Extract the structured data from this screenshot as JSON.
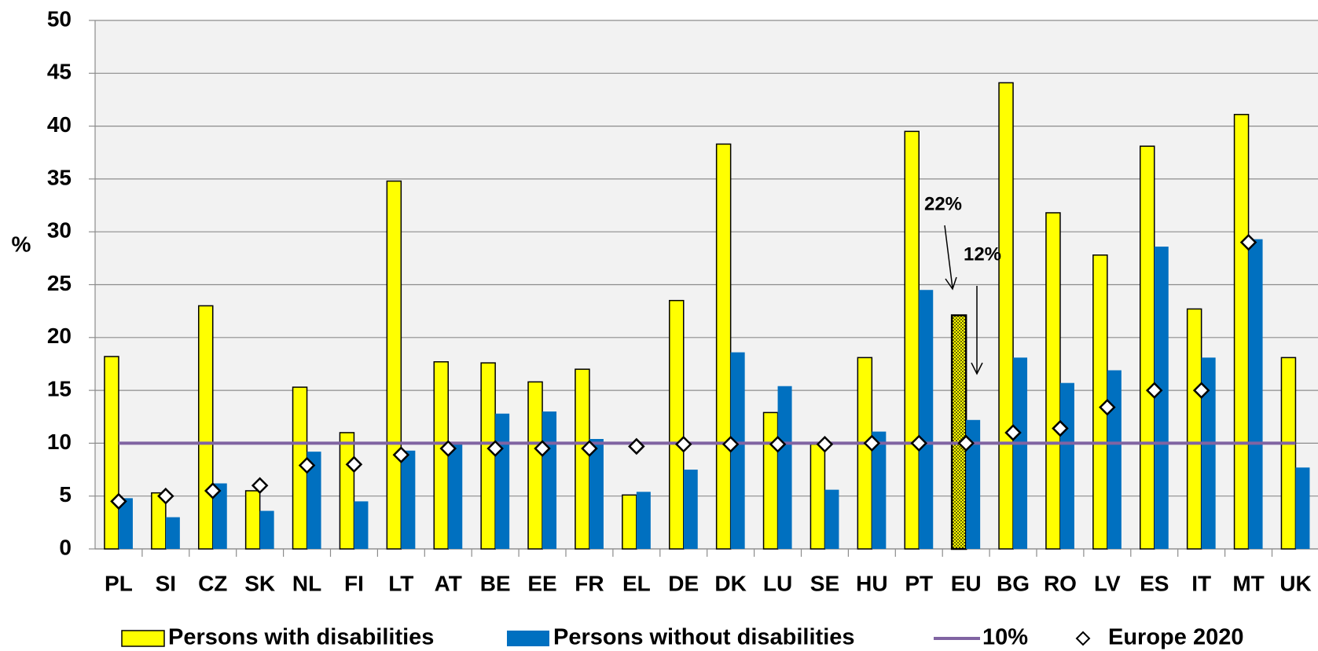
{
  "chart_data": {
    "type": "bar",
    "y_label": "%",
    "categories": [
      "PL",
      "SI",
      "CZ",
      "SK",
      "NL",
      "FI",
      "LT",
      "AT",
      "BE",
      "EE",
      "FR",
      "EL",
      "DE",
      "DK",
      "LU",
      "SE",
      "HU",
      "PT",
      "EU",
      "BG",
      "RO",
      "LV",
      "ES",
      "IT",
      "MT",
      "UK"
    ],
    "series": [
      {
        "name": "Persons with disabilities",
        "color": "#ffff00",
        "values": [
          18.2,
          5.3,
          23,
          5.5,
          15.3,
          11,
          34.8,
          17.7,
          17.6,
          15.8,
          17,
          5.1,
          23.5,
          38.3,
          12.9,
          9.9,
          18.1,
          39.5,
          22.1,
          44.1,
          31.8,
          27.8,
          38.1,
          22.7,
          41.1,
          18.1
        ]
      },
      {
        "name": "Persons without disabilities",
        "color": "#0070c0",
        "values": [
          4.8,
          3,
          6.2,
          3.6,
          9.2,
          4.5,
          9.3,
          10,
          12.8,
          13,
          10.4,
          5.4,
          7.5,
          18.6,
          15.4,
          5.6,
          11.1,
          24.5,
          12.2,
          18.1,
          15.7,
          16.9,
          28.6,
          18.1,
          29.3,
          7.7
        ]
      },
      {
        "name": "Europe 2020",
        "type": "marker",
        "values": [
          4.5,
          5,
          5.5,
          6,
          7.9,
          8,
          8.9,
          9.5,
          9.5,
          9.5,
          9.5,
          9.7,
          9.9,
          9.9,
          9.9,
          9.9,
          10,
          10,
          10,
          11,
          11.4,
          13.4,
          15,
          15,
          29,
          null
        ]
      }
    ],
    "reference_line": {
      "name": "10%",
      "value": 10,
      "color": "#8064a2"
    },
    "highlight": "EU",
    "annotations": [
      {
        "text": "22%"
      },
      {
        "text": "12%"
      }
    ],
    "ylim": [
      0,
      50
    ],
    "yticks": [
      0,
      5,
      10,
      15,
      20,
      25,
      30,
      35,
      40,
      45,
      50
    ],
    "grid": true
  }
}
